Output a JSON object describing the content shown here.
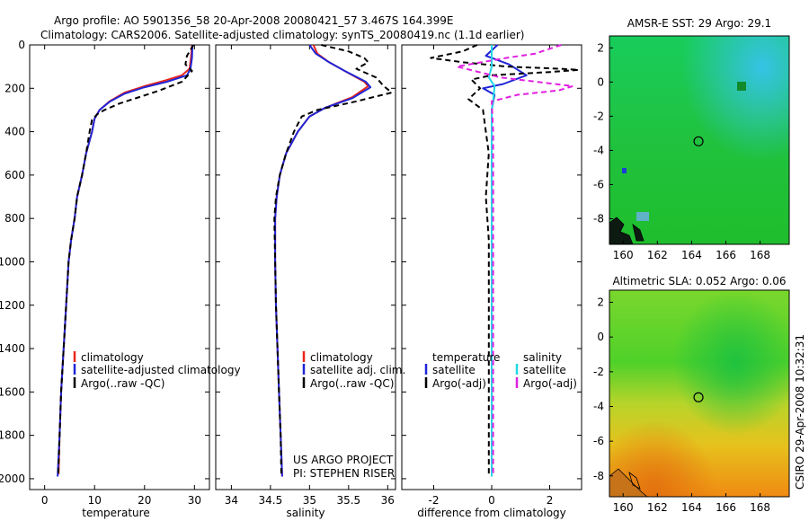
{
  "header": {
    "line1": "Argo profile: AO 5901356_58 20-Apr-2008 20080421_57 3.467S 164.399E",
    "line2": "Climatology: CARS2006. Satellite-adjusted climatology: synTS_20080419.nc (1.1d earlier)"
  },
  "side_label": "CSIRO 29-Apr-2008 10:32:31",
  "colors": {
    "climatology": "#e8261c",
    "satellite": "#1f25d6",
    "argo": "#000000",
    "sat_salinity": "#22d7e6",
    "argo_adj_salinity": "#e020e0"
  },
  "chart_data": [
    {
      "id": "temperature",
      "type": "line",
      "xlabel": "temperature",
      "ylabel": "",
      "xlim": [
        -3,
        33
      ],
      "ylim": [
        2050,
        0
      ],
      "xticks": [
        0,
        10,
        20,
        30
      ],
      "yticks": [
        0,
        200,
        400,
        600,
        800,
        1000,
        1200,
        1400,
        1600,
        1800,
        2000
      ],
      "legend": {
        "position": "lower-right",
        "entries": [
          "climatology",
          "satellite-adjusted climatology",
          "Argo(..raw -QC)"
        ]
      },
      "series": [
        {
          "name": "climatology",
          "color": "#e8261c",
          "dash": "",
          "points": [
            [
              29.5,
              0
            ],
            [
              29.3,
              60
            ],
            [
              29.0,
              110
            ],
            [
              27.5,
              140
            ],
            [
              24,
              165
            ],
            [
              20,
              190
            ],
            [
              16,
              220
            ],
            [
              13,
              260
            ],
            [
              11,
              300
            ],
            [
              10,
              340
            ],
            [
              9.5,
              400
            ],
            [
              8.3,
              500
            ],
            [
              7.5,
              600
            ],
            [
              6.5,
              700
            ],
            [
              6,
              800
            ],
            [
              5.3,
              900
            ],
            [
              4.8,
              1000
            ],
            [
              4.3,
              1200
            ],
            [
              3.8,
              1400
            ],
            [
              3.3,
              1600
            ],
            [
              3,
              1800
            ],
            [
              2.8,
              1980
            ]
          ]
        },
        {
          "name": "satellite-adjusted climatology",
          "color": "#1f25d6",
          "dash": "",
          "points": [
            [
              29.6,
              0
            ],
            [
              29.5,
              60
            ],
            [
              29.2,
              110
            ],
            [
              28.5,
              140
            ],
            [
              24.5,
              170
            ],
            [
              20,
              195
            ],
            [
              16,
              225
            ],
            [
              13,
              262
            ],
            [
              11,
              300
            ],
            [
              10,
              340
            ],
            [
              9.5,
              400
            ],
            [
              8.3,
              500
            ],
            [
              7.5,
              600
            ],
            [
              6.5,
              700
            ],
            [
              6,
              800
            ],
            [
              5.3,
              900
            ],
            [
              4.8,
              1000
            ],
            [
              4.3,
              1200
            ],
            [
              3.8,
              1400
            ],
            [
              3.3,
              1600
            ],
            [
              3,
              1800
            ],
            [
              2.6,
              1990
            ]
          ]
        },
        {
          "name": "Argo(..raw -QC)",
          "color": "#000000",
          "dash": "6,4",
          "points": [
            [
              29.8,
              0
            ],
            [
              28.5,
              50
            ],
            [
              28.2,
              90
            ],
            [
              29.5,
              120
            ],
            [
              27.5,
              170
            ],
            [
              23,
              210
            ],
            [
              19,
              240
            ],
            [
              15,
              270
            ],
            [
              12,
              300
            ],
            [
              10.5,
              320
            ],
            [
              9.5,
              345
            ],
            [
              9,
              400
            ],
            [
              8.3,
              500
            ],
            [
              7.5,
              600
            ],
            [
              6.5,
              700
            ],
            [
              6,
              800
            ],
            [
              5.3,
              900
            ],
            [
              4.8,
              1000
            ],
            [
              4.3,
              1200
            ],
            [
              3.8,
              1400
            ],
            [
              3.3,
              1600
            ],
            [
              3,
              1800
            ],
            [
              2.7,
              1990
            ]
          ]
        }
      ]
    },
    {
      "id": "salinity",
      "type": "line",
      "xlabel": "salinity",
      "xlim": [
        33.8,
        36.1
      ],
      "ylim": [
        2050,
        0
      ],
      "xticks": [
        34,
        34.5,
        35,
        35.5,
        36
      ],
      "legend": {
        "position": "lower-right",
        "entries": [
          "climatology",
          "satellite adj. clim.",
          "Argo(..raw -QC)"
        ]
      },
      "annotation": [
        "US ARGO PROJECT",
        "PI: STEPHEN RISER"
      ],
      "series": [
        {
          "name": "climatology",
          "color": "#e8261c",
          "dash": "",
          "points": [
            [
              35.05,
              0
            ],
            [
              35.1,
              40
            ],
            [
              35.25,
              80
            ],
            [
              35.45,
              120
            ],
            [
              35.7,
              170
            ],
            [
              35.75,
              190
            ],
            [
              35.55,
              240
            ],
            [
              35.2,
              290
            ],
            [
              35.0,
              330
            ],
            [
              34.85,
              400
            ],
            [
              34.7,
              500
            ],
            [
              34.62,
              600
            ],
            [
              34.58,
              700
            ],
            [
              34.56,
              800
            ],
            [
              34.56,
              1000
            ],
            [
              34.57,
              1200
            ],
            [
              34.59,
              1400
            ],
            [
              34.61,
              1600
            ],
            [
              34.63,
              1800
            ],
            [
              34.65,
              1990
            ]
          ]
        },
        {
          "name": "satellite adj. clim.",
          "color": "#1f25d6",
          "dash": "",
          "points": [
            [
              35.0,
              0
            ],
            [
              35.08,
              40
            ],
            [
              35.25,
              80
            ],
            [
              35.45,
              120
            ],
            [
              35.72,
              170
            ],
            [
              35.78,
              195
            ],
            [
              35.55,
              245
            ],
            [
              35.2,
              290
            ],
            [
              35.0,
              330
            ],
            [
              34.85,
              400
            ],
            [
              34.7,
              500
            ],
            [
              34.62,
              600
            ],
            [
              34.58,
              700
            ],
            [
              34.56,
              800
            ],
            [
              34.56,
              1000
            ],
            [
              34.57,
              1200
            ],
            [
              34.59,
              1400
            ],
            [
              34.61,
              1600
            ],
            [
              34.63,
              1800
            ],
            [
              34.65,
              1990
            ]
          ]
        },
        {
          "name": "Argo(..raw -QC)",
          "color": "#000000",
          "dash": "6,4",
          "points": [
            [
              35.15,
              0
            ],
            [
              35.5,
              30
            ],
            [
              35.7,
              60
            ],
            [
              35.75,
              80
            ],
            [
              35.6,
              110
            ],
            [
              35.85,
              150
            ],
            [
              35.95,
              190
            ],
            [
              36.05,
              220
            ],
            [
              35.6,
              260
            ],
            [
              35.1,
              300
            ],
            [
              34.9,
              330
            ],
            [
              34.8,
              400
            ],
            [
              34.7,
              500
            ],
            [
              34.62,
              600
            ],
            [
              34.57,
              700
            ],
            [
              34.55,
              800
            ],
            [
              34.56,
              1000
            ],
            [
              34.57,
              1200
            ],
            [
              34.59,
              1400
            ],
            [
              34.61,
              1600
            ],
            [
              34.63,
              1800
            ],
            [
              34.64,
              1990
            ]
          ]
        }
      ]
    },
    {
      "id": "difference",
      "type": "line",
      "xlabel": "difference from climatology",
      "xlim": [
        -3.1,
        3.1
      ],
      "ylim": [
        2050,
        0
      ],
      "xticks": [
        -2,
        0,
        2
      ],
      "legend": {
        "position": "lower-center",
        "columns": [
          {
            "header": "temperature",
            "entries": [
              "satellite",
              "Argo(-adj)"
            ]
          },
          {
            "header": "salinity",
            "entries": [
              "satellite",
              "Argo(-adj)"
            ]
          }
        ]
      },
      "series": [
        {
          "name": "temperature satellite",
          "color": "#1f25d6",
          "dash": "",
          "points": [
            [
              0.2,
              0
            ],
            [
              -0.2,
              50
            ],
            [
              0.6,
              90
            ],
            [
              1.2,
              140
            ],
            [
              0.4,
              180
            ],
            [
              -0.3,
              200
            ],
            [
              0.1,
              230
            ],
            [
              0,
              300
            ],
            [
              0,
              500
            ],
            [
              0,
              1000
            ],
            [
              0,
              1500
            ],
            [
              0,
              1990
            ]
          ]
        },
        {
          "name": "temperature Argo(-adj)",
          "color": "#000000",
          "dash": "6,4",
          "points": [
            [
              -0.5,
              0
            ],
            [
              -1.0,
              30
            ],
            [
              -2.1,
              60
            ],
            [
              -1.0,
              80
            ],
            [
              0.5,
              100
            ],
            [
              2.4,
              110
            ],
            [
              3.0,
              115
            ],
            [
              2.0,
              125
            ],
            [
              0,
              140
            ],
            [
              -0.7,
              160
            ],
            [
              -0.4,
              200
            ],
            [
              -0.8,
              250
            ],
            [
              -0.3,
              300
            ],
            [
              -0.2,
              400
            ],
            [
              -0.1,
              500
            ],
            [
              -0.2,
              700
            ],
            [
              -0.1,
              900
            ],
            [
              -0.1,
              1100
            ],
            [
              -0.1,
              1300
            ],
            [
              -0.1,
              1500
            ],
            [
              -0.1,
              1700
            ],
            [
              -0.1,
              1990
            ]
          ]
        },
        {
          "name": "salinity satellite",
          "color": "#22d7e6",
          "dash": "",
          "points": [
            [
              0,
              0
            ],
            [
              0,
              100
            ],
            [
              -0.1,
              150
            ],
            [
              0.1,
              190
            ],
            [
              0.05,
              260
            ],
            [
              0,
              300
            ],
            [
              0,
              500
            ],
            [
              0,
              1000
            ],
            [
              0,
              1500
            ],
            [
              0,
              1990
            ]
          ]
        },
        {
          "name": "salinity Argo(-adj)",
          "color": "#e020e0",
          "dash": "6,4",
          "points": [
            [
              2.4,
              0
            ],
            [
              1.5,
              40
            ],
            [
              0.5,
              60
            ],
            [
              -1.2,
              100
            ],
            [
              0.3,
              150
            ],
            [
              2.8,
              190
            ],
            [
              2.3,
              210
            ],
            [
              0.9,
              230
            ],
            [
              0,
              260
            ],
            [
              0.05,
              400
            ],
            [
              0.05,
              600
            ],
            [
              0.05,
              1000
            ],
            [
              0.05,
              1400
            ],
            [
              0.05,
              1990
            ]
          ]
        }
      ]
    },
    {
      "id": "sst-map",
      "type": "heatmap",
      "title": "AMSR-E SST: 29 Argo: 29.1",
      "xlim": [
        159.2,
        169.7
      ],
      "ylim": [
        -9.5,
        2.7
      ],
      "xticks": [
        160,
        162,
        164,
        166,
        168
      ],
      "yticks": [
        -8,
        -6,
        -4,
        -2,
        0,
        2
      ],
      "marker": [
        164.4,
        -3.47
      ]
    },
    {
      "id": "sla-map",
      "type": "heatmap",
      "title": "Altimetric SLA: 0.052 Argo: 0.06",
      "xlim": [
        159.2,
        169.7
      ],
      "ylim": [
        -9.2,
        2.7
      ],
      "xticks": [
        160,
        162,
        164,
        166,
        168
      ],
      "yticks": [
        -8,
        -6,
        -4,
        -2,
        0,
        2
      ],
      "marker": [
        164.4,
        -3.47
      ]
    }
  ]
}
